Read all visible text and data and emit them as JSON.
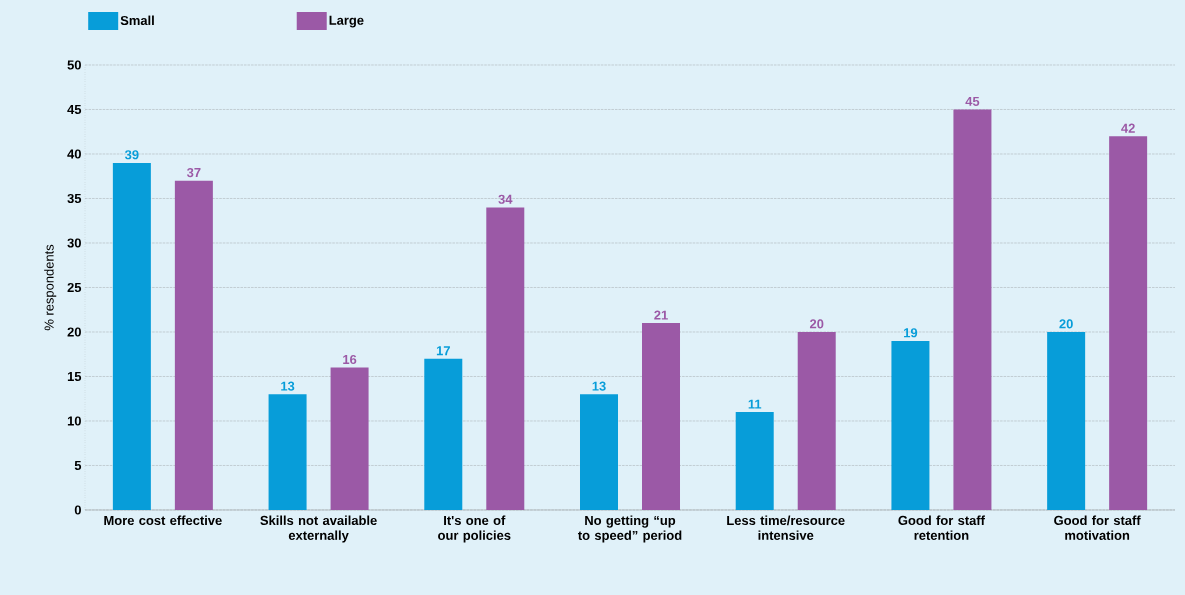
{
  "chart_data": {
    "type": "bar",
    "ylabel": "% respondents",
    "categories": [
      "More cost effective",
      "Skills not available externally",
      "It's one of our policies",
      "No getting “up to speed” period",
      "Less time/resource intensive",
      "Good for staff retention",
      "Good  for staff motivation"
    ],
    "series": [
      {
        "name": "Small",
        "color": "#079dd9",
        "values": [
          39,
          13,
          17,
          13,
          11,
          19,
          20
        ]
      },
      {
        "name": "Large",
        "color": "#9b59a6",
        "values": [
          37,
          16,
          34,
          21,
          20,
          45,
          42
        ]
      }
    ],
    "ylim": [
      0,
      50
    ],
    "yticks": [
      0,
      5,
      10,
      15,
      20,
      25,
      30,
      35,
      40,
      45,
      50
    ],
    "grid": "y",
    "legend": "top left",
    "data_labels": true
  }
}
